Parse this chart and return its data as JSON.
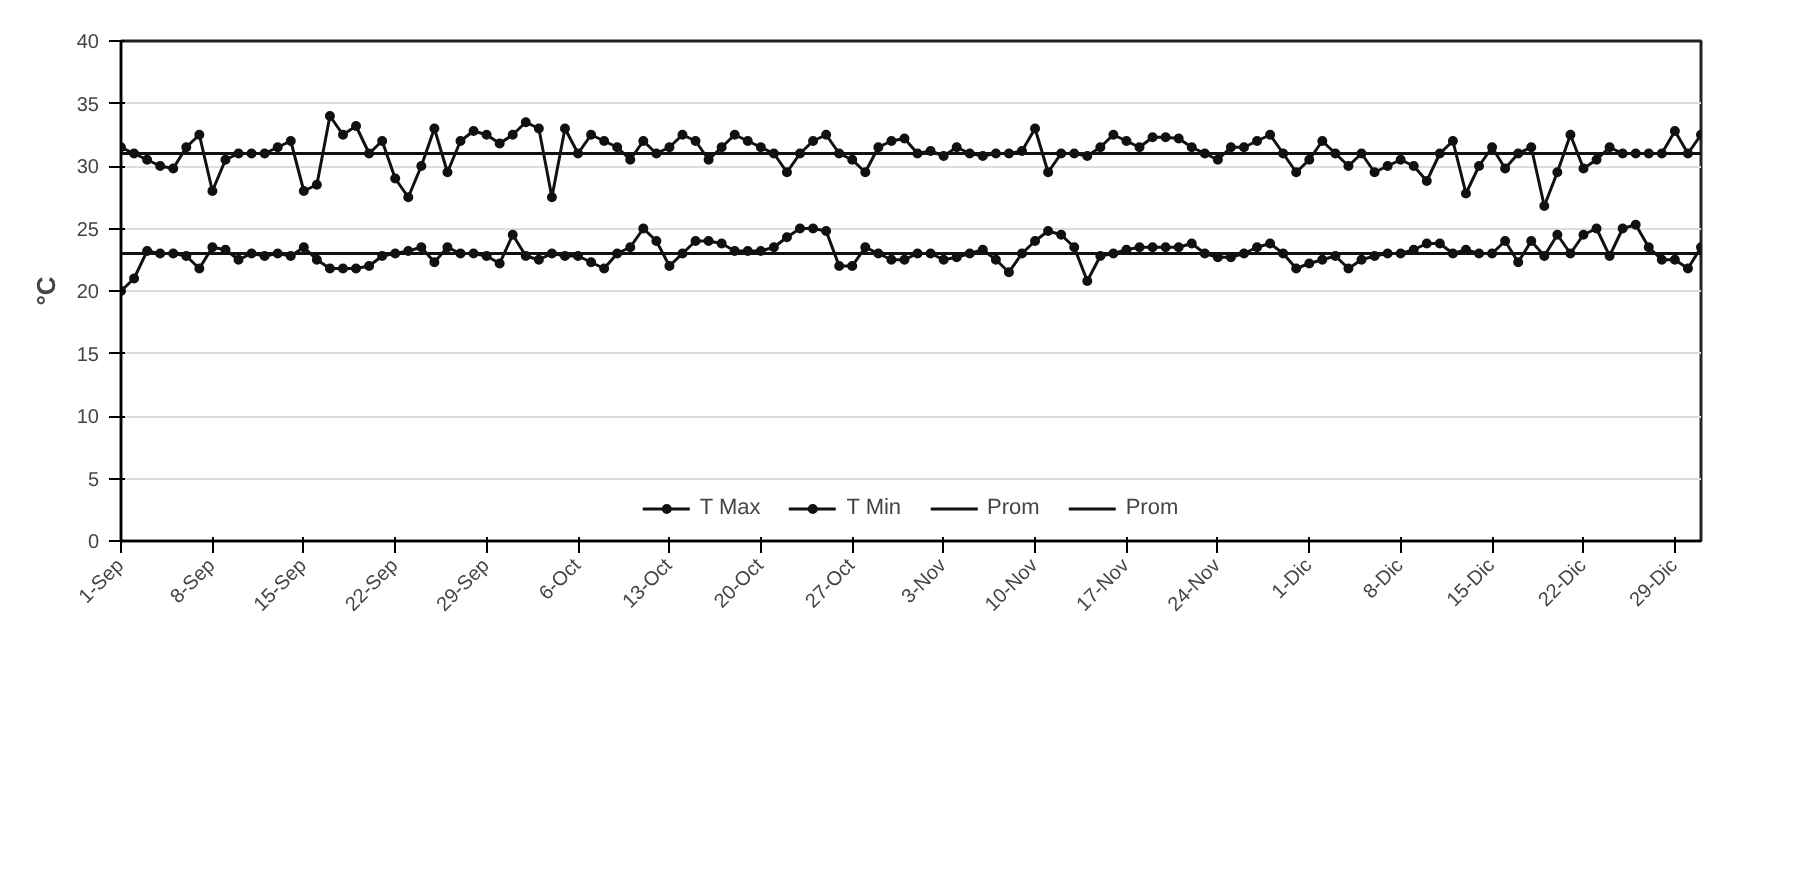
{
  "chart_data": {
    "type": "line",
    "ylabel": "°C",
    "categories": [
      "1-Sep",
      null,
      null,
      null,
      null,
      null,
      null,
      "8-Sep",
      null,
      null,
      null,
      null,
      null,
      null,
      "15-Sep",
      null,
      null,
      null,
      null,
      null,
      null,
      "22-Sep",
      null,
      null,
      null,
      null,
      null,
      null,
      "29-Sep",
      null,
      null,
      null,
      null,
      null,
      null,
      "6-Oct",
      null,
      null,
      null,
      null,
      null,
      null,
      "13-Oct",
      null,
      null,
      null,
      null,
      null,
      null,
      "20-Oct",
      null,
      null,
      null,
      null,
      null,
      null,
      "27-Oct",
      null,
      null,
      null,
      null,
      null,
      null,
      "3-Nov",
      null,
      null,
      null,
      null,
      null,
      null,
      "10-Nov",
      null,
      null,
      null,
      null,
      null,
      null,
      "17-Nov",
      null,
      null,
      null,
      null,
      null,
      null,
      "24-Nov",
      null,
      null,
      null,
      null,
      null,
      null,
      "1-Dic",
      null,
      null,
      null,
      null,
      null,
      null,
      "8-Dic",
      null,
      null,
      null,
      null,
      null,
      null,
      "15-Dic",
      null,
      null,
      null,
      null,
      null,
      null,
      "22-Dic",
      null,
      null,
      null,
      null,
      null,
      null,
      "29-Dic",
      null,
      null
    ],
    "series": [
      {
        "name": "T Max",
        "color": "#111111",
        "values": [
          31.5,
          31,
          30.5,
          30,
          29.8,
          31.5,
          32.5,
          28,
          30.5,
          31,
          31,
          31,
          31.5,
          32,
          28,
          28.5,
          34,
          32.5,
          33.2,
          31,
          32,
          29,
          27.5,
          30,
          33,
          29.5,
          32,
          32.8,
          32.5,
          31.8,
          32.5,
          33.5,
          33,
          27.5,
          33,
          31,
          32.5,
          32,
          31.5,
          30.5,
          32,
          31,
          31.5,
          32.5,
          32,
          30.5,
          31.5,
          32.5,
          32,
          31.5,
          31,
          29.5,
          31,
          32,
          32.5,
          31,
          30.5,
          29.5,
          31.5,
          32,
          32.2,
          31,
          31.2,
          30.8,
          31.5,
          31,
          30.8,
          31,
          31,
          31.2,
          33,
          29.5,
          31,
          31,
          30.8,
          31.5,
          32.5,
          32,
          31.5,
          32.3,
          32.3,
          32.2,
          31.5,
          31,
          30.5,
          31.5,
          31.5,
          32,
          32.5,
          31,
          29.5,
          30.5,
          32,
          31,
          30,
          31,
          29.5,
          30,
          30.5,
          30,
          28.8,
          31,
          32,
          27.8,
          30,
          31.5,
          29.8,
          31,
          31.5,
          26.8,
          29.5,
          32.5,
          29.8,
          30.5,
          31.5,
          31,
          31,
          31,
          31,
          32.8,
          31,
          32.5
        ]
      },
      {
        "name": "T Min",
        "color": "#111111",
        "values": [
          20,
          21,
          23.2,
          23,
          23,
          22.8,
          21.8,
          23.5,
          23.3,
          22.5,
          23,
          22.8,
          23,
          22.8,
          23.5,
          22.5,
          21.8,
          21.8,
          21.8,
          22,
          22.8,
          23,
          23.2,
          23.5,
          22.3,
          23.5,
          23,
          23,
          22.8,
          22.2,
          24.5,
          22.8,
          22.5,
          23,
          22.8,
          22.8,
          22.3,
          21.8,
          23,
          23.5,
          25,
          24,
          22,
          23,
          24,
          24,
          23.8,
          23.2,
          23.2,
          23.2,
          23.5,
          24.3,
          25,
          25,
          24.8,
          22,
          22,
          23.5,
          23,
          22.5,
          22.5,
          23,
          23,
          22.5,
          22.7,
          23,
          23.3,
          22.5,
          21.5,
          23,
          24,
          24.8,
          24.5,
          23.5,
          20.8,
          22.8,
          23,
          23.3,
          23.5,
          23.5,
          23.5,
          23.5,
          23.8,
          23,
          22.7,
          22.7,
          23,
          23.5,
          23.8,
          23,
          21.8,
          22.2,
          22.5,
          22.8,
          21.8,
          22.5,
          22.8,
          23,
          23,
          23.3,
          23.8,
          23.8,
          23,
          23.3,
          23,
          23,
          24,
          22.3,
          24,
          22.8,
          24.5,
          23,
          24.5,
          25,
          22.8,
          25,
          25.3,
          23.5,
          22.5,
          22.5,
          21.8,
          23.5
        ]
      }
    ],
    "ref_lines": [
      {
        "axis": "y",
        "value": 31,
        "label": "Prom",
        "color": "#111111"
      },
      {
        "axis": "y",
        "value": 23,
        "label": "Prom",
        "color": "#111111"
      }
    ],
    "ylim": [
      0,
      40
    ],
    "yticks": [
      0,
      5,
      10,
      15,
      20,
      25,
      30,
      35,
      40
    ],
    "grid": "y",
    "legend": "bottom",
    "marker": "circle",
    "line_style": "solid"
  }
}
